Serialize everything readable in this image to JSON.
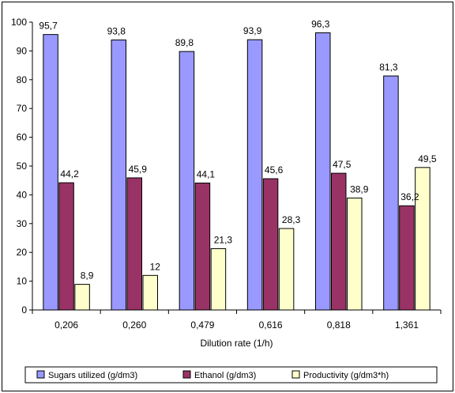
{
  "chart_data": {
    "type": "bar",
    "title": "",
    "xlabel": "Dilution rate (1/h)",
    "ylabel": "",
    "ylim": [
      0,
      100
    ],
    "yticks": [
      "0",
      "10",
      "20",
      "30",
      "40",
      "50",
      "60",
      "70",
      "80",
      "90",
      "100"
    ],
    "categories": [
      "0,206",
      "0,260",
      "0,479",
      "0,616",
      "0,818",
      "1,361"
    ],
    "series": [
      {
        "name": "Sugars utilized (g/dm3)",
        "color": "#9999ff",
        "values": [
          95.7,
          93.8,
          89.8,
          93.9,
          96.3,
          81.3
        ],
        "labels": [
          "95,7",
          "93,8",
          "89,8",
          "93,9",
          "96,3",
          "81,3"
        ]
      },
      {
        "name": "Ethanol (g/dm3)",
        "color": "#993366",
        "values": [
          44.2,
          45.9,
          44.1,
          45.6,
          47.5,
          36.2
        ],
        "labels": [
          "44,2",
          "45,9",
          "44,1",
          "45,6",
          "47,5",
          "36,2"
        ]
      },
      {
        "name": "Productivity (g/dm3*h)",
        "color": "#ffffcc",
        "values": [
          8.9,
          12,
          21.3,
          28.3,
          38.9,
          49.5
        ],
        "labels": [
          "8,9",
          "12",
          "21,3",
          "28,3",
          "38,9",
          "49,5"
        ]
      }
    ],
    "grid": false,
    "legend_position": "bottom"
  }
}
